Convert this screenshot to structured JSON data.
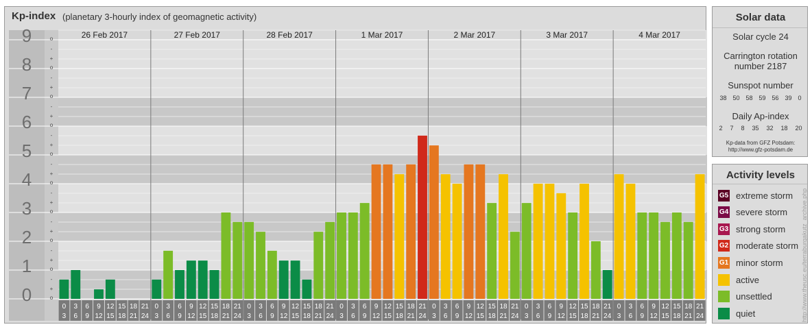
{
  "header": {
    "title": "Kp-index",
    "subtitle": "(planetary 3-hourly index of geomagnetic activity)"
  },
  "chart_data": {
    "type": "bar",
    "title": "Kp-index",
    "subtitle": "(planetary 3-hourly index of geomagnetic activity)",
    "ylim": [
      0,
      9
    ],
    "y_ticks": [
      "0",
      "1",
      "2",
      "3",
      "4",
      "5",
      "6",
      "7",
      "8",
      "9"
    ],
    "minor_ticks": [
      "o",
      "+",
      "-"
    ],
    "days": [
      "26 Feb 2017",
      "27 Feb 2017",
      "28 Feb 2017",
      "1 Mar 2017",
      "2 Mar 2017",
      "3 Mar 2017",
      "4 Mar 2017"
    ],
    "interval_start": [
      "0",
      "3",
      "6",
      "9",
      "12",
      "15",
      "18",
      "21"
    ],
    "interval_end": [
      "3",
      "6",
      "9",
      "12",
      "15",
      "18",
      "21",
      "24"
    ],
    "values": [
      0.67,
      1.0,
      0.0,
      0.33,
      0.67,
      0.0,
      0.0,
      0.0,
      0.67,
      1.67,
      1.0,
      1.33,
      1.33,
      1.0,
      3.0,
      2.67,
      2.67,
      2.33,
      1.67,
      1.33,
      1.33,
      0.67,
      2.33,
      2.67,
      3.0,
      3.0,
      3.33,
      4.67,
      4.67,
      4.33,
      4.67,
      5.67,
      5.33,
      4.33,
      4.0,
      4.67,
      4.67,
      3.33,
      4.33,
      2.33,
      3.33,
      4.0,
      4.0,
      3.67,
      3.0,
      4.0,
      2.0,
      1.0,
      4.33,
      4.0,
      3.0,
      3.0,
      2.67,
      3.0,
      2.67,
      4.33
    ],
    "levels": [
      {
        "min": 9,
        "label": "extreme storm",
        "color": "#5a0024"
      },
      {
        "min": 8,
        "label": "severe storm",
        "color": "#7b0a46"
      },
      {
        "min": 7,
        "label": "strong storm",
        "color": "#a8174f"
      },
      {
        "min": 6,
        "label": "moderate storm",
        "color": "#d0291a"
      },
      {
        "min": 5,
        "label": "minor storm",
        "color": "#e57720"
      },
      {
        "min": 4,
        "label": "active",
        "color": "#f5c200"
      },
      {
        "min": 2,
        "label": "unsettled",
        "color": "#7cbc28"
      },
      {
        "min": 0,
        "label": "quiet",
        "color": "#0b8c47"
      }
    ],
    "grid": true,
    "legend": "right"
  },
  "solar": {
    "title": "Solar data",
    "cycle": "Solar cycle 24",
    "carrington_1": "Carrington rotation",
    "carrington_2": "number 2187",
    "sunspot_title": "Sunspot number",
    "sunspot_values": [
      "38",
      "50",
      "58",
      "59",
      "56",
      "39",
      "0"
    ],
    "ap_title": "Daily Ap-index",
    "ap_values": [
      "2",
      "7",
      "8",
      "35",
      "32",
      "18",
      "20"
    ],
    "source_1": "Kp-data from GFZ Potsdam:",
    "source_2": "http://www.gfz-potsdam.de"
  },
  "legend": {
    "title": "Activity levels",
    "items": [
      {
        "code": "G5",
        "label": "extreme storm",
        "color": "#5a0024"
      },
      {
        "code": "G4",
        "label": "severe storm",
        "color": "#7b0a46"
      },
      {
        "code": "G3",
        "label": "strong storm",
        "color": "#a8174f"
      },
      {
        "code": "G2",
        "label": "moderate storm",
        "color": "#d0291a"
      },
      {
        "code": "G1",
        "label": "minor storm",
        "color": "#e57720"
      },
      {
        "code": "",
        "label": "active",
        "color": "#f5c200"
      },
      {
        "code": "",
        "label": "unsettled",
        "color": "#7cbc28"
      },
      {
        "code": "",
        "label": "quiet",
        "color": "#0b8c47"
      }
    ]
  },
  "credit": "http://www.theusc.eu/terraburgakutz_archive.php"
}
